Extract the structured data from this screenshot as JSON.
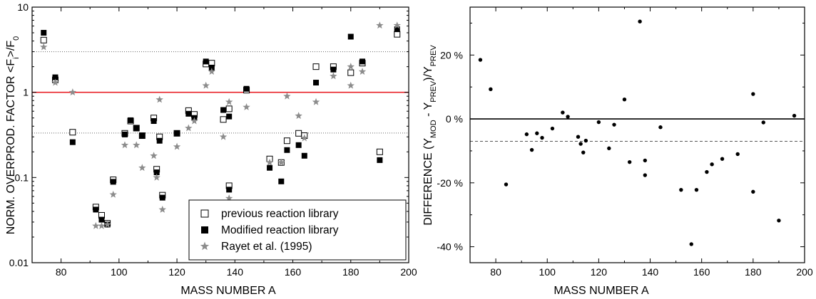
{
  "chart_data": [
    {
      "type": "scatter",
      "xlabel": "MASS NUMBER A",
      "ylabel": {
        "main": "NORM. OVERPROD. FACTOR <F",
        "sub": "i",
        "rest": ">/F",
        "sub2": "0"
      },
      "x_ticks": [
        "80",
        "100",
        "120",
        "140",
        "160",
        "180",
        "200"
      ],
      "y_ticks": [
        "0.01",
        "0.1",
        "1",
        "10"
      ],
      "xlim": [
        70,
        200
      ],
      "ylim": [
        0.01,
        10
      ],
      "y_scale": "log",
      "reference_lines": [
        {
          "y": 1,
          "style": "solid",
          "color": "#e8232a"
        },
        {
          "y": 3,
          "style": "dotted",
          "color": "#666666"
        },
        {
          "y": 0.333,
          "style": "dotted",
          "color": "#666666"
        }
      ],
      "legend": {
        "position": "bottom-right"
      },
      "series": [
        {
          "name": "previous reaction library",
          "marker": "open-square",
          "color": "#000000",
          "points": [
            [
              74,
              4.1
            ],
            [
              78,
              1.4
            ],
            [
              84,
              0.34
            ],
            [
              92,
              0.045
            ],
            [
              94,
              0.036
            ],
            [
              96,
              0.029
            ],
            [
              98,
              0.094
            ],
            [
              102,
              0.33
            ],
            [
              104,
              0.46
            ],
            [
              106,
              0.38
            ],
            [
              108,
              0.31
            ],
            [
              112,
              0.5
            ],
            [
              113,
              0.125
            ],
            [
              114,
              0.3
            ],
            [
              115,
              0.062
            ],
            [
              120,
              0.33
            ],
            [
              124,
              0.61
            ],
            [
              126,
              0.55
            ],
            [
              130,
              2.15
            ],
            [
              132,
              2.2
            ],
            [
              136,
              0.48
            ],
            [
              138,
              0.64
            ],
            [
              138,
              0.08
            ],
            [
              144,
              1.06
            ],
            [
              152,
              0.165
            ],
            [
              156,
              0.15
            ],
            [
              158,
              0.27
            ],
            [
              162,
              0.33
            ],
            [
              164,
              0.31
            ],
            [
              168,
              2.0
            ],
            [
              174,
              2.0
            ],
            [
              180,
              1.7
            ],
            [
              184,
              2.2
            ],
            [
              190,
              0.2
            ],
            [
              196,
              4.8
            ]
          ]
        },
        {
          "name": "Modified reaction library",
          "marker": "filled-square",
          "color": "#000000",
          "points": [
            [
              74,
              5.0
            ],
            [
              78,
              1.5
            ],
            [
              84,
              0.26
            ],
            [
              92,
              0.042
            ],
            [
              94,
              0.032
            ],
            [
              96,
              0.028
            ],
            [
              98,
              0.089
            ],
            [
              102,
              0.32
            ],
            [
              104,
              0.47
            ],
            [
              106,
              0.38
            ],
            [
              108,
              0.31
            ],
            [
              112,
              0.46
            ],
            [
              113,
              0.115
            ],
            [
              114,
              0.27
            ],
            [
              115,
              0.058
            ],
            [
              120,
              0.33
            ],
            [
              124,
              0.56
            ],
            [
              126,
              0.5
            ],
            [
              130,
              2.3
            ],
            [
              132,
              1.95
            ],
            [
              136,
              0.62
            ],
            [
              138,
              0.52
            ],
            [
              138,
              0.072
            ],
            [
              144,
              1.1
            ],
            [
              152,
              0.13
            ],
            [
              156,
              0.09
            ],
            [
              158,
              0.21
            ],
            [
              162,
              0.24
            ],
            [
              164,
              0.18
            ],
            [
              168,
              1.3
            ],
            [
              174,
              1.85
            ],
            [
              180,
              4.5
            ],
            [
              184,
              2.3
            ],
            [
              190,
              0.16
            ],
            [
              196,
              5.5
            ]
          ]
        },
        {
          "name": "Rayet et al. (1995)",
          "marker": "star",
          "color": "#8c8c8c",
          "points": [
            [
              74,
              3.4
            ],
            [
              78,
              1.3
            ],
            [
              84,
              1.0
            ],
            [
              92,
              0.027
            ],
            [
              94,
              0.027
            ],
            [
              96,
              0.028
            ],
            [
              98,
              0.063
            ],
            [
              102,
              0.24
            ],
            [
              106,
              0.24
            ],
            [
              108,
              0.13
            ],
            [
              112,
              0.18
            ],
            [
              113,
              0.1
            ],
            [
              114,
              0.82
            ],
            [
              115,
              0.042
            ],
            [
              120,
              0.23
            ],
            [
              124,
              0.38
            ],
            [
              126,
              0.46
            ],
            [
              130,
              1.2
            ],
            [
              132,
              1.75
            ],
            [
              136,
              0.3
            ],
            [
              138,
              0.057
            ],
            [
              138,
              0.77
            ],
            [
              144,
              0.67
            ],
            [
              152,
              0.15
            ],
            [
              156,
              0.15
            ],
            [
              158,
              0.9
            ],
            [
              162,
              0.53
            ],
            [
              164,
              0.29
            ],
            [
              168,
              0.77
            ],
            [
              174,
              1.55
            ],
            [
              180,
              1.2
            ],
            [
              180,
              2.0
            ],
            [
              184,
              1.75
            ],
            [
              190,
              6.1
            ],
            [
              196,
              6.1
            ]
          ]
        }
      ]
    },
    {
      "type": "scatter",
      "xlabel": "MASS NUMBER A",
      "ylabel": {
        "main": "DIFFERENCE (Y",
        "sub": "MOD",
        "rest": " - Y",
        "sub2": "PREV",
        "rest2": ")/Y",
        "sub3": "PREV"
      },
      "x_ticks": [
        "80",
        "100",
        "120",
        "140",
        "160",
        "180",
        "200"
      ],
      "y_ticks": [
        "-40 %",
        "-20 %",
        "0 %",
        "20 %"
      ],
      "xlim": [
        70,
        200
      ],
      "ylim": [
        -45,
        35
      ],
      "reference_lines": [
        {
          "y": 0,
          "style": "solid",
          "color": "#000000"
        },
        {
          "y": -7,
          "style": "dashed",
          "color": "#555555"
        }
      ],
      "series": [
        {
          "marker": "dot",
          "color": "#000000",
          "points": [
            [
              74,
              18.5
            ],
            [
              78,
              9.3
            ],
            [
              84,
              -20.5
            ],
            [
              92,
              -4.8
            ],
            [
              94,
              -9.7
            ],
            [
              96,
              -4.5
            ],
            [
              98,
              -5.9
            ],
            [
              102,
              -3.0
            ],
            [
              106,
              2.0
            ],
            [
              108,
              0.7
            ],
            [
              112,
              -5.6
            ],
            [
              113,
              -7.8
            ],
            [
              114,
              -10.5
            ],
            [
              115,
              -6.8
            ],
            [
              120,
              -1.0
            ],
            [
              124,
              -9.2
            ],
            [
              126,
              -1.8
            ],
            [
              130,
              6.1
            ],
            [
              132,
              -13.5
            ],
            [
              136,
              30.5
            ],
            [
              138,
              -13.0
            ],
            [
              138,
              -17.6
            ],
            [
              144,
              -2.6
            ],
            [
              152,
              -22.2
            ],
            [
              156,
              -39.2
            ],
            [
              158,
              -22.2
            ],
            [
              162,
              -16.6
            ],
            [
              164,
              -14.2
            ],
            [
              168,
              -12.5
            ],
            [
              174,
              -11.0
            ],
            [
              180,
              7.8
            ],
            [
              180,
              -22.8
            ],
            [
              184,
              -1.1
            ],
            [
              190,
              -31.8
            ],
            [
              196,
              1.0
            ]
          ]
        }
      ]
    }
  ]
}
